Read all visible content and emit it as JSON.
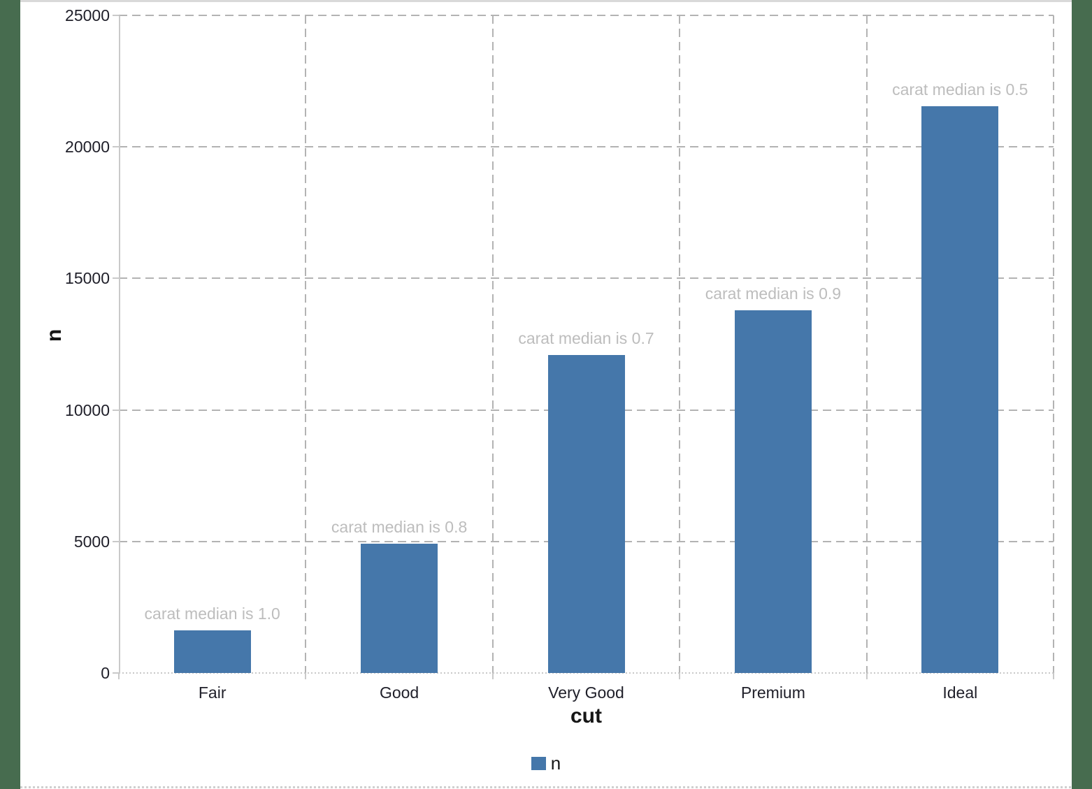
{
  "chart_data": {
    "type": "bar",
    "title": "",
    "categories": [
      "Fair",
      "Good",
      "Very Good",
      "Premium",
      "Ideal"
    ],
    "series": [
      {
        "name": "n",
        "values": [
          1610,
          4906,
          12082,
          13791,
          21551
        ]
      }
    ],
    "bar_annotations": [
      "carat median is 1.0",
      "carat median is 0.8",
      "carat median is 0.7",
      "carat median is 0.9",
      "carat median is 0.5"
    ],
    "xlabel": "cut",
    "ylabel": "n",
    "ylim": [
      0,
      25000
    ],
    "yticks": [
      0,
      5000,
      10000,
      15000,
      20000,
      25000
    ],
    "grid": "dashed gray, horizontal and vertical",
    "legend": {
      "position": "bottom-center",
      "entries": [
        {
          "label": "n",
          "color": "#4577aa"
        }
      ]
    }
  },
  "colors": {
    "background": "#476c4f",
    "panel": "#ffffff",
    "bar": "#4577aa",
    "annotation_text": "#bdbdbd",
    "grid": "#b3b3b3",
    "axis": "#c9c9c9",
    "tick_text": "#20202a"
  }
}
